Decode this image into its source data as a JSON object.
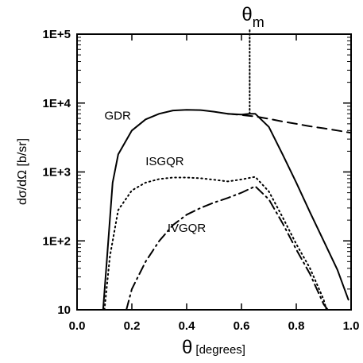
{
  "chart_data": {
    "type": "line",
    "title": "",
    "xlabel": "[degrees]",
    "xlabel_symbol": "θ",
    "ylabel": "dσ/dΩ  [b/sr]",
    "xlim": [
      0.0,
      1.0
    ],
    "ylim": [
      10,
      100000
    ],
    "yscale": "log",
    "x_ticks": [
      "0.0",
      "0.2",
      "0.4",
      "0.6",
      "0.8",
      "1.0"
    ],
    "y_ticks": [
      "10",
      "1E+2",
      "1E+3",
      "1E+4",
      "1E+5"
    ],
    "series": [
      {
        "name": "GDR",
        "style": "solid",
        "points": [
          [
            0.095,
            10
          ],
          [
            0.11,
            60
          ],
          [
            0.13,
            700
          ],
          [
            0.15,
            1800
          ],
          [
            0.2,
            4000
          ],
          [
            0.25,
            5800
          ],
          [
            0.3,
            7000
          ],
          [
            0.35,
            7800
          ],
          [
            0.4,
            8000
          ],
          [
            0.45,
            7900
          ],
          [
            0.5,
            7500
          ],
          [
            0.55,
            7000
          ],
          [
            0.6,
            6800
          ],
          [
            0.63,
            7000
          ],
          [
            0.65,
            7000
          ],
          [
            0.7,
            4500
          ],
          [
            0.75,
            1800
          ],
          [
            0.8,
            700
          ],
          [
            0.85,
            260
          ],
          [
            0.9,
            100
          ],
          [
            0.95,
            38
          ],
          [
            0.99,
            14
          ]
        ]
      },
      {
        "name": "",
        "style": "dashed",
        "points": [
          [
            0.55,
            7000
          ],
          [
            0.6,
            6700
          ],
          [
            0.65,
            6400
          ],
          [
            0.7,
            5900
          ],
          [
            0.75,
            5400
          ],
          [
            0.8,
            5000
          ],
          [
            0.85,
            4600
          ],
          [
            0.9,
            4300
          ],
          [
            0.95,
            4000
          ],
          [
            1.0,
            3700
          ]
        ]
      },
      {
        "name": "ISGQR",
        "style": "dotted",
        "points": [
          [
            0.1,
            10
          ],
          [
            0.12,
            60
          ],
          [
            0.15,
            280
          ],
          [
            0.2,
            540
          ],
          [
            0.25,
            700
          ],
          [
            0.3,
            790
          ],
          [
            0.35,
            830
          ],
          [
            0.4,
            830
          ],
          [
            0.45,
            810
          ],
          [
            0.5,
            770
          ],
          [
            0.55,
            730
          ],
          [
            0.6,
            780
          ],
          [
            0.65,
            850
          ],
          [
            0.7,
            520
          ],
          [
            0.75,
            220
          ],
          [
            0.8,
            90
          ],
          [
            0.85,
            40
          ],
          [
            0.9,
            14
          ],
          [
            0.91,
            10
          ]
        ]
      },
      {
        "name": "IVGQR",
        "style": "dashdot",
        "points": [
          [
            0.18,
            10
          ],
          [
            0.2,
            20
          ],
          [
            0.25,
            50
          ],
          [
            0.3,
            100
          ],
          [
            0.35,
            170
          ],
          [
            0.4,
            240
          ],
          [
            0.45,
            300
          ],
          [
            0.5,
            360
          ],
          [
            0.55,
            420
          ],
          [
            0.6,
            500
          ],
          [
            0.65,
            620
          ],
          [
            0.7,
            400
          ],
          [
            0.75,
            180
          ],
          [
            0.8,
            75
          ],
          [
            0.85,
            33
          ],
          [
            0.9,
            12
          ],
          [
            0.915,
            10
          ]
        ]
      }
    ],
    "annotations": [
      {
        "text": "GDR",
        "x": 0.1,
        "y": 5800
      },
      {
        "text": "ISGQR",
        "x": 0.25,
        "y": 1250
      },
      {
        "text": "IVGQR",
        "x": 0.33,
        "y": 135
      }
    ],
    "marker": {
      "label": "θ",
      "sub": "m",
      "x": 0.63,
      "style": "dotted-vertical"
    },
    "grid": false,
    "legend": "none"
  }
}
